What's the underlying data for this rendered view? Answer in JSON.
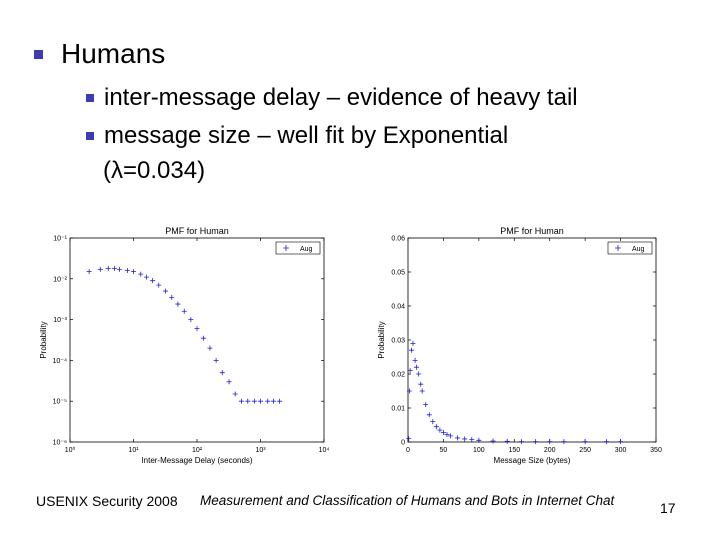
{
  "colors": {
    "bullet": "#3b3bb5",
    "marker": "#2222cc"
  },
  "slide": {
    "heading": "Humans",
    "bullets": [
      "inter-message delay – evidence of heavy tail",
      "message size – well fit by Exponential"
    ],
    "bullet2_cont": "(λ=0.034)"
  },
  "footer": {
    "left": "USENIX Security 2008",
    "title": "Measurement and Classification of Humans and Bots in Internet Chat",
    "page": "17"
  },
  "chart_data": [
    {
      "type": "scatter",
      "title": "PMF for Human",
      "xlabel": "Inter-Message Delay (seconds)",
      "ylabel": "Probability",
      "xscale": "log",
      "yscale": "log",
      "xlim": [
        1,
        10000
      ],
      "ylim": [
        1e-06,
        0.1
      ],
      "xticks": [
        {
          "v": 1,
          "t": "10⁰"
        },
        {
          "v": 10,
          "t": "10¹"
        },
        {
          "v": 100,
          "t": "10²"
        },
        {
          "v": 1000,
          "t": "10³"
        },
        {
          "v": 10000,
          "t": "10⁴"
        }
      ],
      "yticks": [
        {
          "v": 1e-06,
          "t": "10⁻⁶"
        },
        {
          "v": 1e-05,
          "t": "10⁻⁵"
        },
        {
          "v": 0.0001,
          "t": "10⁻⁴"
        },
        {
          "v": 0.001,
          "t": "10⁻³"
        },
        {
          "v": 0.01,
          "t": "10⁻²"
        },
        {
          "v": 0.1,
          "t": "10⁻¹"
        }
      ],
      "legend": "top-right",
      "series": [
        {
          "name": "Aug",
          "marker": "+",
          "x": [
            2,
            3,
            4,
            5,
            6,
            8,
            10,
            13,
            16,
            20,
            25,
            32,
            40,
            50,
            63,
            80,
            100,
            126,
            160,
            200,
            250,
            320,
            400,
            500,
            630,
            800,
            1000,
            1300,
            1600,
            2000
          ],
          "y": [
            0.015,
            0.017,
            0.018,
            0.018,
            0.017,
            0.016,
            0.015,
            0.013,
            0.011,
            0.009,
            0.007,
            0.005,
            0.0035,
            0.0024,
            0.0016,
            0.001,
            0.0006,
            0.00035,
            0.0002,
            0.0001,
            5e-05,
            3e-05,
            1.5e-05,
            1e-05,
            1e-05,
            1e-05,
            1e-05,
            1e-05,
            1e-05,
            1e-05
          ]
        }
      ]
    },
    {
      "type": "scatter",
      "title": "PMF for Human",
      "xlabel": "Message Size (bytes)",
      "ylabel": "Probability",
      "xlim": [
        0,
        350
      ],
      "ylim": [
        0,
        0.06
      ],
      "xticks": [
        {
          "v": 0,
          "t": "0"
        },
        {
          "v": 50,
          "t": "50"
        },
        {
          "v": 100,
          "t": "100"
        },
        {
          "v": 150,
          "t": "150"
        },
        {
          "v": 200,
          "t": "200"
        },
        {
          "v": 250,
          "t": "250"
        },
        {
          "v": 300,
          "t": "300"
        },
        {
          "v": 350,
          "t": "350"
        }
      ],
      "yticks": [
        {
          "v": 0,
          "t": "0"
        },
        {
          "v": 0.01,
          "t": "0.01"
        },
        {
          "v": 0.02,
          "t": "0.02"
        },
        {
          "v": 0.03,
          "t": "0.03"
        },
        {
          "v": 0.04,
          "t": "0.04"
        },
        {
          "v": 0.05,
          "t": "0.05"
        },
        {
          "v": 0.06,
          "t": "0.06"
        }
      ],
      "legend": "top-right",
      "series": [
        {
          "name": "Aug",
          "marker": "+",
          "x": [
            1,
            2,
            3,
            5,
            7,
            10,
            12,
            15,
            18,
            20,
            25,
            30,
            35,
            40,
            45,
            50,
            55,
            60,
            70,
            80,
            90,
            100,
            120,
            140,
            160,
            180,
            200,
            220,
            250,
            280,
            300
          ],
          "y": [
            0.001,
            0.015,
            0.021,
            0.027,
            0.029,
            0.024,
            0.022,
            0.02,
            0.017,
            0.015,
            0.011,
            0.008,
            0.006,
            0.0045,
            0.0035,
            0.0028,
            0.0022,
            0.0018,
            0.0012,
            0.0009,
            0.0007,
            0.0005,
            0.0003,
            0.0002,
            0.0001,
            0.0001,
            0.0001,
            0.0001,
            0.0001,
            0.0001,
            0.0001
          ]
        }
      ]
    }
  ]
}
